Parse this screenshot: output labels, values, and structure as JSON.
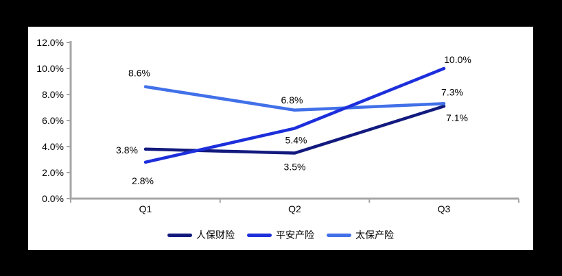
{
  "chart_data": {
    "type": "line",
    "title": "",
    "xlabel": "",
    "ylabel": "",
    "categories": [
      "Q1",
      "Q2",
      "Q3"
    ],
    "series": [
      {
        "name": "人保财险",
        "color": "#131A7E",
        "values": [
          3.8,
          3.5,
          7.1
        ],
        "labels": [
          "3.8%",
          "3.5%",
          "7.1%"
        ],
        "label_offsets": [
          [
            -27,
            1
          ],
          [
            0,
            20
          ],
          [
            19,
            17
          ]
        ]
      },
      {
        "name": "平安产险",
        "color": "#1D2FDB",
        "values": [
          2.8,
          5.4,
          10.0
        ],
        "labels": [
          "2.8%",
          "5.4%",
          "10.0%"
        ],
        "label_offsets": [
          [
            -4,
            27
          ],
          [
            2,
            17
          ],
          [
            20,
            -13
          ]
        ]
      },
      {
        "name": "太保产险",
        "color": "#4170E8",
        "values": [
          8.6,
          6.8,
          7.3
        ],
        "labels": [
          "8.6%",
          "6.8%",
          "7.3%"
        ],
        "label_offsets": [
          [
            -9,
            -20
          ],
          [
            -4,
            -15
          ],
          [
            12,
            -17
          ]
        ]
      }
    ],
    "draw_order": [
      0,
      2,
      1
    ],
    "ylim": [
      0,
      12
    ],
    "ytick_step": 2,
    "yticks": [
      "0.0%",
      "2.0%",
      "4.0%",
      "6.0%",
      "8.0%",
      "10.0%",
      "12.0%"
    ],
    "grid": false,
    "legend_position": "bottom",
    "axis_color": "#A6A6A6",
    "label_color": "#000000",
    "panel_background": "#FFFFFF",
    "outer_background": "#000000"
  }
}
